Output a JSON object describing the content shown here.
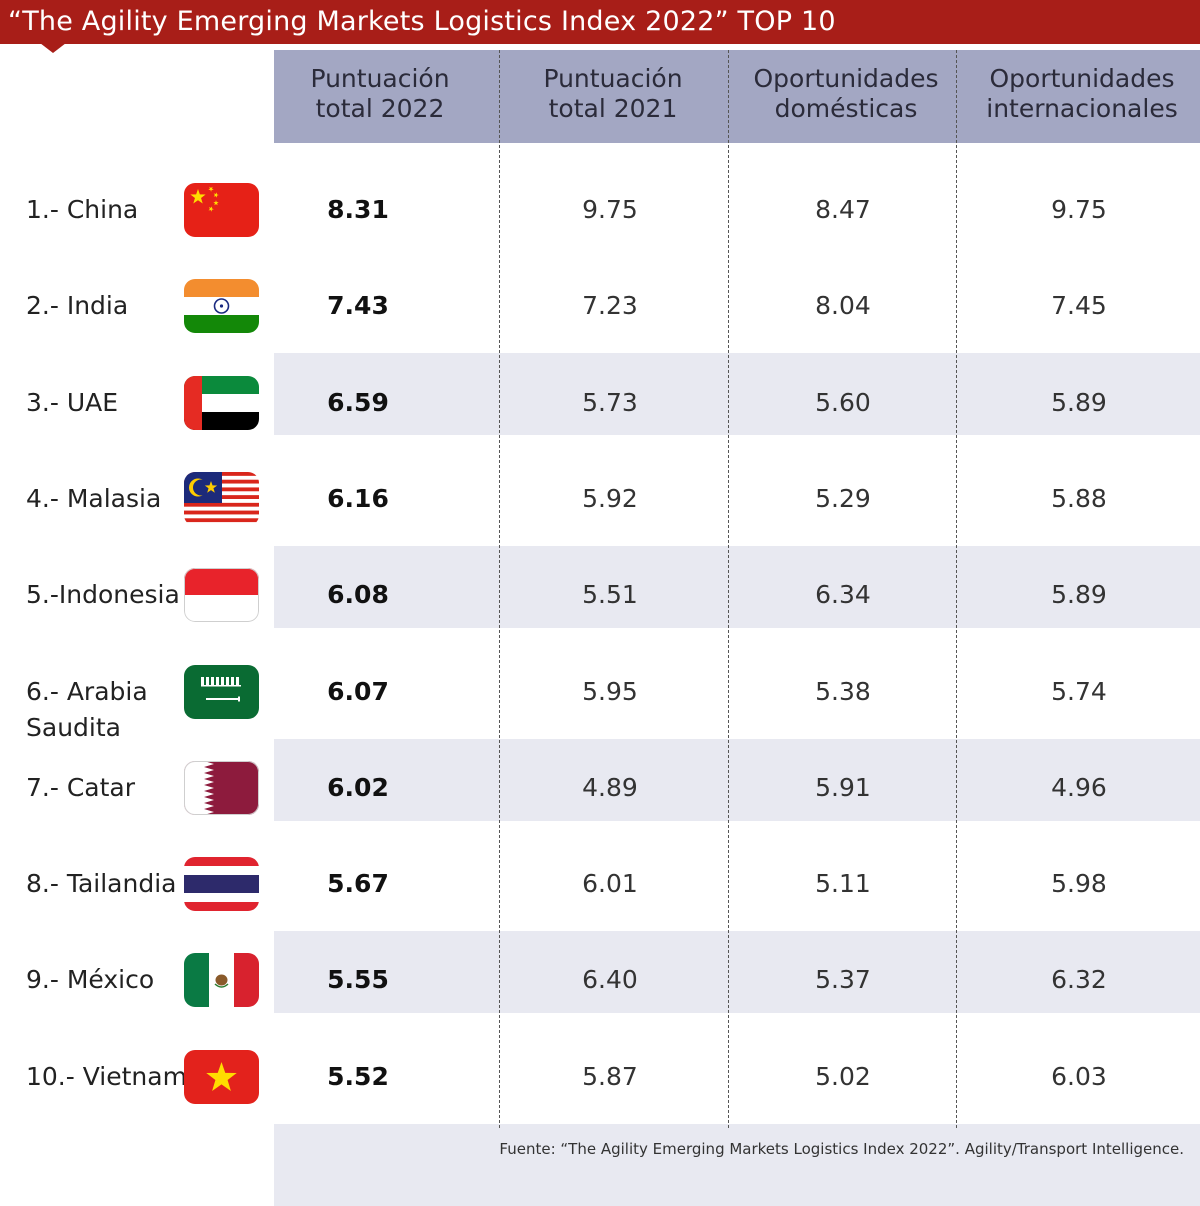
{
  "title": "“The Agility Emerging Markets Logistics Index 2022” TOP 10",
  "columns": [
    "Puntuación\ntotal 2022",
    "Puntuación\ntotal 2021",
    "Oportunidades\ndomésticas",
    "Oportunidades\ninternacionales"
  ],
  "source": "Fuente: “The Agility Emerging Markets Logistics Index 2022”. Agility/Transport Intelligence.",
  "chart_data": {
    "type": "table",
    "title": "“The Agility Emerging Markets Logistics Index 2022” TOP 10",
    "columns": [
      "Puntuación total 2022",
      "Puntuación total 2021",
      "Oportunidades domésticas",
      "Oportunidades internacionales"
    ],
    "rows": [
      {
        "label": "1.- China",
        "flag": "china-flag",
        "values": [
          "8.31",
          "9.75",
          "8.47",
          "9.75"
        ]
      },
      {
        "label": "2.- India",
        "flag": "india-flag",
        "values": [
          "7.43",
          "7.23",
          "8.04",
          "7.45"
        ]
      },
      {
        "label": "3.- UAE",
        "flag": "uae-flag",
        "values": [
          "6.59",
          "5.73",
          "5.60",
          "5.89"
        ]
      },
      {
        "label": "4.- Malasia",
        "flag": "malaysia-flag",
        "values": [
          "6.16",
          "5.92",
          "5.29",
          "5.88"
        ]
      },
      {
        "label": "5.-Indonesia",
        "flag": "indonesia-flag",
        "values": [
          "6.08",
          "5.51",
          "6.34",
          "5.89"
        ]
      },
      {
        "label": "6.- Arabia\n     Saudita",
        "flag": "saudi-arabia-flag",
        "values": [
          "6.07",
          "5.95",
          "5.38",
          "5.74"
        ]
      },
      {
        "label": "7.- Catar",
        "flag": "qatar-flag",
        "values": [
          "6.02",
          "4.89",
          "5.91",
          "4.96"
        ]
      },
      {
        "label": "8.- Tailandia",
        "flag": "thailand-flag",
        "values": [
          "5.67",
          "6.01",
          "5.11",
          "5.98"
        ]
      },
      {
        "label": "9.- México",
        "flag": "mexico-flag",
        "values": [
          "5.55",
          "6.40",
          "5.37",
          "6.32"
        ]
      },
      {
        "label": "10.- Vietnam",
        "flag": "vietnam-flag",
        "values": [
          "5.52",
          "5.87",
          "5.02",
          "6.03"
        ]
      }
    ]
  },
  "colors": {
    "title_bar": "#a81e18",
    "header_bg": "#a3a7c3",
    "stripe": "#e8e9f1"
  }
}
